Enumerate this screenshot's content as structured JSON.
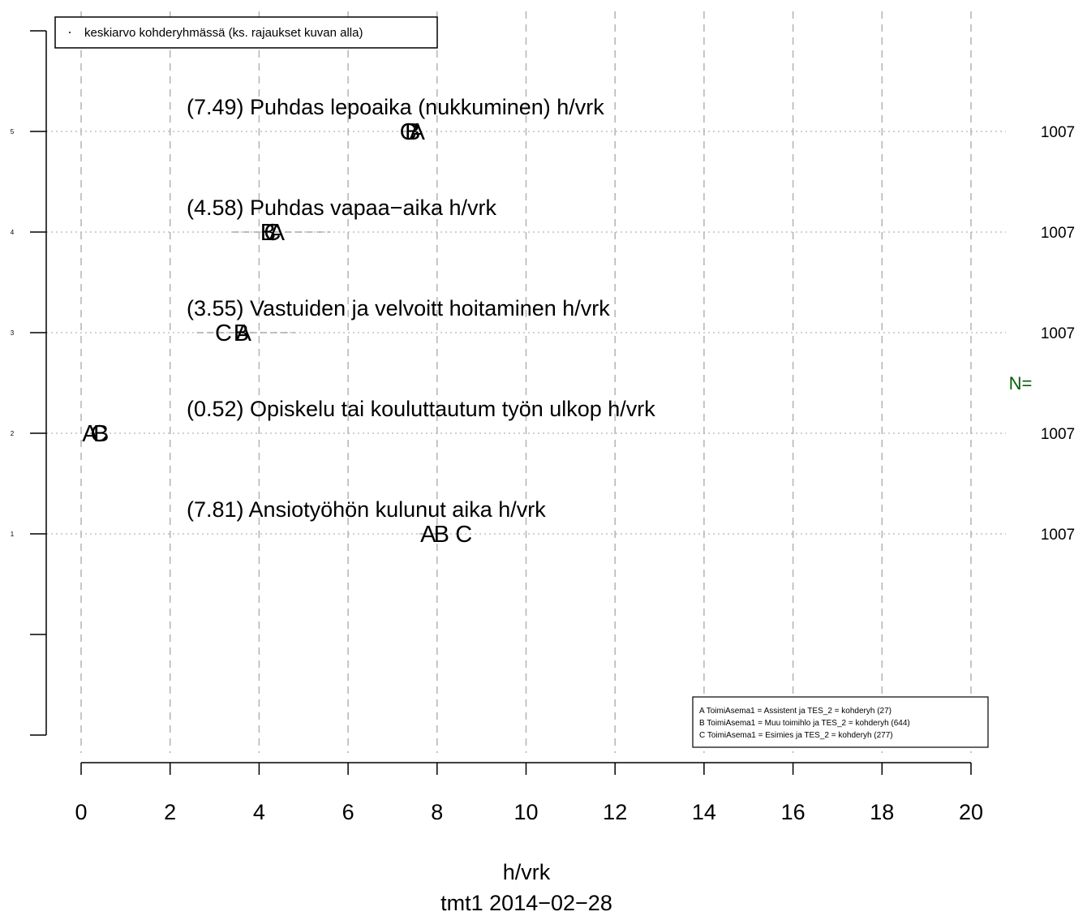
{
  "chart_data": {
    "type": "scatter",
    "xlabel": "h/vrk",
    "subtitle": "tmt1 2014−02−28",
    "xlim": [
      0,
      20
    ],
    "x_ticks": [
      "0",
      "2",
      "4",
      "6",
      "8",
      "10",
      "12",
      "14",
      "16",
      "18",
      "20"
    ],
    "y_ticks": [
      "1",
      "2",
      "3",
      "4",
      "5"
    ],
    "grid": true,
    "n_label": "N=",
    "legend_top": "keskiarvo kohderyhmässä (ks. rajaukset kuvan alla)",
    "legend_groups": [
      "A  ToimiAsema1 = Assistent ja TES_2 = kohderyh (27)",
      "B  ToimiAsema1 = Muu toimihlo ja TES_2 = kohderyh (644)",
      "C  ToimiAsema1 = Esimies ja TES_2 = kohderyh (277)"
    ],
    "items": [
      {
        "y": 5,
        "label": "(7.49) Puhdas lepoaika (nukkuminen) h/vrk",
        "n": "1007",
        "range": [
          7.2,
          7.6
        ],
        "points": [
          {
            "g": "C",
            "x": 7.35
          },
          {
            "g": "B",
            "x": 7.45
          },
          {
            "g": "A",
            "x": 7.55
          }
        ]
      },
      {
        "y": 4,
        "label": "(4.58) Puhdas vapaa−aika h/vrk",
        "n": "1007",
        "range": [
          3.4,
          5.6
        ],
        "points": [
          {
            "g": "B",
            "x": 4.2
          },
          {
            "g": "C",
            "x": 4.3
          },
          {
            "g": "A",
            "x": 4.4
          }
        ]
      },
      {
        "y": 3,
        "label": "(3.55) Vastuiden ja velvoitt hoitaminen h/vrk",
        "n": "1007",
        "range": [
          2.6,
          4.8
        ],
        "points": [
          {
            "g": "C",
            "x": 3.2
          },
          {
            "g": "B",
            "x": 3.6
          },
          {
            "g": "A",
            "x": 3.65
          }
        ]
      },
      {
        "y": 2,
        "label": "(0.52) Opiskelu tai kouluttautum työn ulkop h/vrk",
        "n": "1007",
        "range": [
          0.2,
          0.6
        ],
        "points": [
          {
            "g": "A",
            "x": 0.2
          },
          {
            "g": "C",
            "x": 0.4
          },
          {
            "g": "B",
            "x": 0.45
          }
        ]
      },
      {
        "y": 1,
        "label": "(7.81) Ansiotyöhön kulunut aika h/vrk",
        "n": "1007",
        "range": [
          7.6,
          8.1
        ],
        "points": [
          {
            "g": "A",
            "x": 7.8
          },
          {
            "g": "B",
            "x": 8.1
          },
          {
            "g": "C",
            "x": 8.6
          }
        ]
      }
    ]
  }
}
